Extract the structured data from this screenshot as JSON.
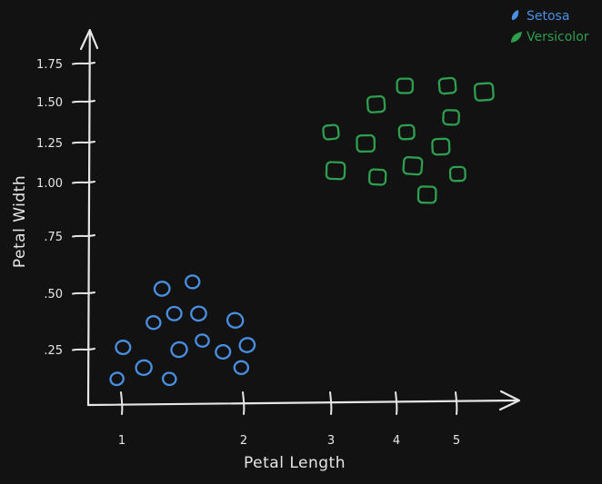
{
  "chart_data": {
    "type": "scatter",
    "xlabel": "Petal Length",
    "ylabel": "Petal Width",
    "x_ticks": [
      {
        "value": 1,
        "label": "1"
      },
      {
        "value": 2,
        "label": "2"
      },
      {
        "value": 3,
        "label": "3"
      },
      {
        "value": 4,
        "label": "4"
      },
      {
        "value": 5,
        "label": "5"
      }
    ],
    "y_ticks": [
      {
        "value": 0.25,
        "label": ".25"
      },
      {
        "value": 0.5,
        "label": ".50"
      },
      {
        "value": 0.75,
        "label": ".75"
      },
      {
        "value": 1.0,
        "label": "1.00"
      },
      {
        "value": 1.25,
        "label": "1.25"
      },
      {
        "value": 1.5,
        "label": "1.50"
      },
      {
        "value": 1.75,
        "label": "1.75"
      }
    ],
    "legend_position": "top-right",
    "series": [
      {
        "name": "Setosa",
        "color": "#4a90e2",
        "marker": "circle",
        "points": [
          {
            "x": 0.96,
            "y": 0.12
          },
          {
            "x": 1.01,
            "y": 0.26
          },
          {
            "x": 1.18,
            "y": 0.17
          },
          {
            "x": 1.26,
            "y": 0.37
          },
          {
            "x": 1.33,
            "y": 0.52
          },
          {
            "x": 1.39,
            "y": 0.12
          },
          {
            "x": 1.43,
            "y": 0.41
          },
          {
            "x": 1.47,
            "y": 0.25
          },
          {
            "x": 1.58,
            "y": 0.55
          },
          {
            "x": 1.63,
            "y": 0.41
          },
          {
            "x": 1.66,
            "y": 0.29
          },
          {
            "x": 1.83,
            "y": 0.24
          },
          {
            "x": 1.93,
            "y": 0.38
          },
          {
            "x": 1.98,
            "y": 0.17
          },
          {
            "x": 2.04,
            "y": 0.27
          }
        ]
      },
      {
        "name": "Versicolor",
        "color": "#2e9e4f",
        "marker": "square",
        "points": [
          {
            "x": 3.0,
            "y": 1.31
          },
          {
            "x": 3.07,
            "y": 1.07
          },
          {
            "x": 3.53,
            "y": 1.24
          },
          {
            "x": 3.69,
            "y": 1.48
          },
          {
            "x": 3.71,
            "y": 1.03
          },
          {
            "x": 4.14,
            "y": 1.6
          },
          {
            "x": 4.17,
            "y": 1.31
          },
          {
            "x": 4.27,
            "y": 1.1
          },
          {
            "x": 4.51,
            "y": 0.94
          },
          {
            "x": 4.74,
            "y": 1.22
          },
          {
            "x": 4.85,
            "y": 1.6
          },
          {
            "x": 4.91,
            "y": 1.4
          },
          {
            "x": 5.02,
            "y": 1.05
          },
          {
            "x": 5.46,
            "y": 1.56
          }
        ]
      }
    ]
  }
}
